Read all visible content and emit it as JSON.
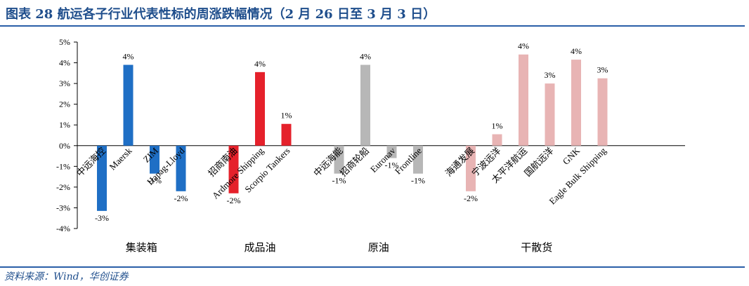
{
  "title": "图表 28 航运各子行业代表性标的周涨跌幅情况（2 月 26 日至 3 月 3 日）",
  "source": "资料来源：Wind，华创证券",
  "chart_data": {
    "type": "bar",
    "title": "图表 28 航运各子行业代表性标的周涨跌幅情况（2 月 26 日至 3 月 3 日）",
    "xlabel": "",
    "ylabel": "",
    "ylim": [
      -4,
      5
    ],
    "yticks": [
      "5%",
      "4%",
      "3%",
      "2%",
      "1%",
      "0%",
      "-1%",
      "-2%",
      "-3%",
      "-4%"
    ],
    "grid": false,
    "groups": [
      {
        "name": "集装箱",
        "color": "#1f6fc5",
        "categories": [
          "中远海控",
          "Maersk",
          "ZIM",
          "Hapag-Lloyd"
        ],
        "values": [
          -3.15,
          3.9,
          -1.35,
          -2.2
        ],
        "labels": [
          "-3%",
          "4%",
          "-1%",
          "-2%"
        ]
      },
      {
        "name": "成品油",
        "color": "#e5212b",
        "categories": [
          "招商南油",
          "Ardmore Shipping",
          "Scorpio Tankers"
        ],
        "values": [
          -2.3,
          3.55,
          1.05
        ],
        "labels": [
          "-2%",
          "4%",
          "1%"
        ]
      },
      {
        "name": "原油",
        "color": "#b7b7b7",
        "categories": [
          "中远海能",
          "招商轮船",
          "Euronav",
          "Frontline"
        ],
        "values": [
          -1.35,
          3.9,
          -0.6,
          -1.35
        ],
        "labels": [
          "-1%",
          "4%",
          "-1%",
          "-1%"
        ]
      },
      {
        "name": "干散货",
        "color": "#e8b4b4",
        "categories": [
          "海通发展",
          "宁波远洋",
          "太平洋航运",
          "国航远洋",
          "GNK",
          "Eagle Bulk Shipping"
        ],
        "values": [
          -2.2,
          0.55,
          4.4,
          3.0,
          4.15,
          3.25
        ],
        "labels": [
          "-2%",
          "1%",
          "4%",
          "3%",
          "4%",
          "3%"
        ]
      }
    ]
  }
}
